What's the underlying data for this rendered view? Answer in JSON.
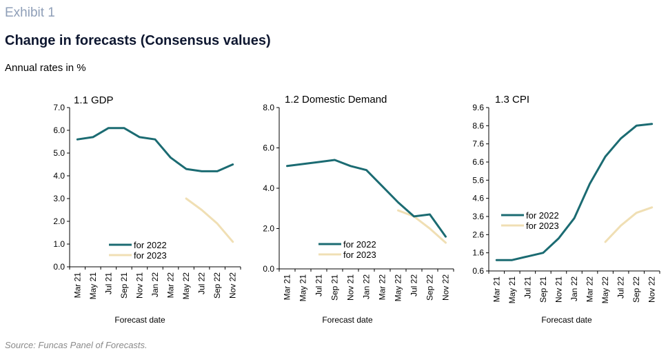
{
  "header": {
    "exhibit": "Exhibit 1",
    "title": "Change in forecasts (Consensus values)",
    "subtitle": "Annual rates in %"
  },
  "source": "Source: Funcas Panel of Forecasts.",
  "colors": {
    "series_2022": "#1b6b72",
    "series_2023": "#f0dfb4"
  },
  "chart_data": [
    {
      "type": "line",
      "title": "1.1 GDP",
      "xlabel": "Forecast date",
      "x": [
        "Mar 21",
        "May 21",
        "Jul 21",
        "Sep 21",
        "Nov 21",
        "Jan 22",
        "Mar 22",
        "May 22",
        "Jul 22",
        "Sep 22",
        "Nov 22"
      ],
      "y_ticks": [
        "7.0",
        "6.0",
        "5.0",
        "4.0",
        "3.0",
        "2.0",
        "1.0",
        "0.0"
      ],
      "ylim": [
        0,
        7
      ],
      "legend": "bottom-center",
      "series": [
        {
          "name": "for 2022",
          "values": [
            5.6,
            5.7,
            6.1,
            6.1,
            5.7,
            5.6,
            4.8,
            4.3,
            4.2,
            4.2,
            4.5
          ]
        },
        {
          "name": "for 2023",
          "values": [
            null,
            null,
            null,
            null,
            null,
            null,
            null,
            3.0,
            2.5,
            1.9,
            1.1
          ]
        }
      ]
    },
    {
      "type": "line",
      "title": "1.2 Domestic Demand",
      "xlabel": "Forecast date",
      "x": [
        "Mar 21",
        "May 21",
        "Jul 21",
        "Sep 21",
        "Nov 21",
        "Jan 22",
        "Mar 22",
        "May 22",
        "Jul 22",
        "Sep 22",
        "Nov 22"
      ],
      "y_ticks": [
        "8.0",
        "6.0",
        "4.0",
        "2.0",
        "0.0"
      ],
      "ylim": [
        0,
        8
      ],
      "legend": "bottom-center",
      "series": [
        {
          "name": "for 2022",
          "values": [
            5.1,
            5.2,
            5.3,
            5.4,
            5.1,
            4.9,
            4.1,
            3.3,
            2.6,
            2.7,
            1.6
          ]
        },
        {
          "name": "for 2023",
          "values": [
            null,
            null,
            null,
            null,
            null,
            null,
            null,
            2.9,
            2.6,
            2.0,
            1.3
          ]
        }
      ]
    },
    {
      "type": "line",
      "title": "1.3 CPI",
      "xlabel": "Forecast date",
      "x": [
        "Mar 21",
        "May 21",
        "Jul 21",
        "Sep 21",
        "Nov 21",
        "Jan 22",
        "Mar 22",
        "May 22",
        "Jul 22",
        "Sep 22",
        "Nov 22"
      ],
      "y_ticks": [
        "9.6",
        "8.6",
        "7.6",
        "6.6",
        "5.6",
        "4.6",
        "3.6",
        "2.6",
        "1.6",
        "0.6"
      ],
      "ylim": [
        0.6,
        9.6
      ],
      "legend": "middle-left",
      "series": [
        {
          "name": "for 2022",
          "values": [
            1.2,
            1.2,
            1.4,
            1.6,
            2.4,
            3.5,
            5.4,
            6.9,
            7.9,
            8.6,
            8.7
          ]
        },
        {
          "name": "for 2023",
          "values": [
            null,
            null,
            null,
            null,
            null,
            null,
            null,
            2.2,
            3.1,
            3.8,
            4.1
          ]
        }
      ]
    }
  ]
}
